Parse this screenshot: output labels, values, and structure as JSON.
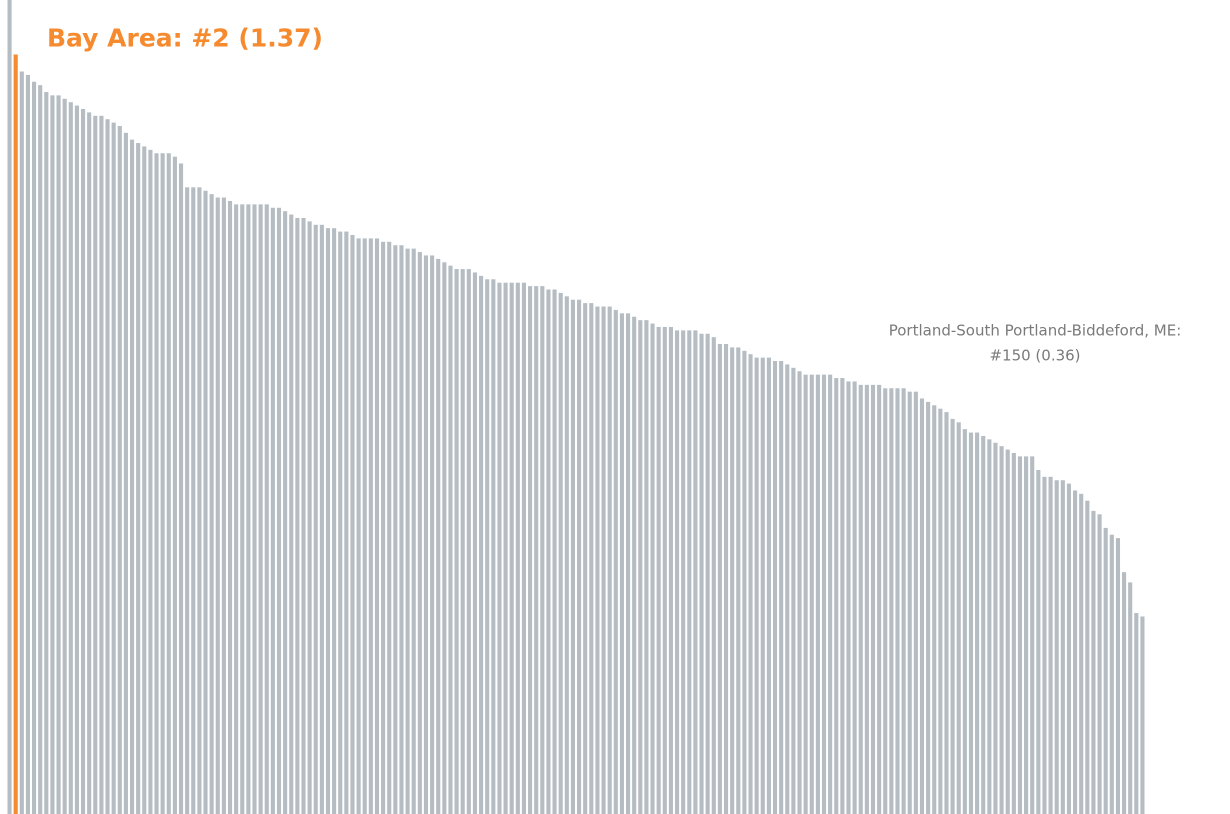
{
  "chart_data": {
    "type": "bar",
    "values": [
      1.53,
      1.37,
      1.32,
      1.31,
      1.29,
      1.28,
      1.26,
      1.25,
      1.25,
      1.24,
      1.23,
      1.22,
      1.21,
      1.2,
      1.19,
      1.19,
      1.18,
      1.17,
      1.16,
      1.14,
      1.12,
      1.11,
      1.1,
      1.09,
      1.08,
      1.08,
      1.08,
      1.07,
      1.05,
      0.98,
      0.98,
      0.98,
      0.97,
      0.96,
      0.95,
      0.95,
      0.94,
      0.93,
      0.93,
      0.93,
      0.93,
      0.93,
      0.93,
      0.92,
      0.92,
      0.91,
      0.9,
      0.89,
      0.89,
      0.88,
      0.87,
      0.87,
      0.86,
      0.86,
      0.85,
      0.85,
      0.84,
      0.83,
      0.83,
      0.83,
      0.83,
      0.82,
      0.82,
      0.81,
      0.81,
      0.8,
      0.8,
      0.79,
      0.78,
      0.78,
      0.77,
      0.76,
      0.75,
      0.74,
      0.74,
      0.74,
      0.73,
      0.72,
      0.71,
      0.71,
      0.7,
      0.7,
      0.7,
      0.7,
      0.7,
      0.69,
      0.69,
      0.69,
      0.68,
      0.68,
      0.67,
      0.66,
      0.65,
      0.65,
      0.64,
      0.64,
      0.63,
      0.63,
      0.63,
      0.62,
      0.61,
      0.61,
      0.6,
      0.59,
      0.59,
      0.58,
      0.57,
      0.57,
      0.57,
      0.56,
      0.56,
      0.56,
      0.56,
      0.55,
      0.55,
      0.54,
      0.52,
      0.52,
      0.51,
      0.51,
      0.5,
      0.49,
      0.48,
      0.48,
      0.48,
      0.47,
      0.47,
      0.46,
      0.45,
      0.44,
      0.43,
      0.43,
      0.43,
      0.43,
      0.43,
      0.42,
      0.42,
      0.41,
      0.41,
      0.4,
      0.4,
      0.4,
      0.4,
      0.39,
      0.39,
      0.39,
      0.39,
      0.38,
      0.38,
      0.36,
      0.35,
      0.34,
      0.33,
      0.32,
      0.3,
      0.29,
      0.27,
      0.26,
      0.26,
      0.25,
      0.24,
      0.23,
      0.22,
      0.21,
      0.2,
      0.19,
      0.19,
      0.19,
      0.15,
      0.13,
      0.13,
      0.12,
      0.12,
      0.11,
      0.09,
      0.08,
      0.06,
      0.03,
      0.02,
      -0.02,
      -0.04,
      -0.05,
      -0.15,
      -0.18,
      -0.27,
      -0.28
    ],
    "color": "#b5bdc3",
    "ylim": [
      -0.86,
      1.53
    ],
    "annotations": [
      {
        "lines": [
          "Bay Area: #2 (1.37)"
        ],
        "rank": 2,
        "value": 1.37,
        "color": "#f58a2e"
      },
      {
        "lines": [
          "Portland-South Portland-Biddeford, ME:",
          "#150 (0.36)"
        ],
        "rank": 150,
        "value": 0.36,
        "color": "#7a7a7a"
      }
    ]
  }
}
